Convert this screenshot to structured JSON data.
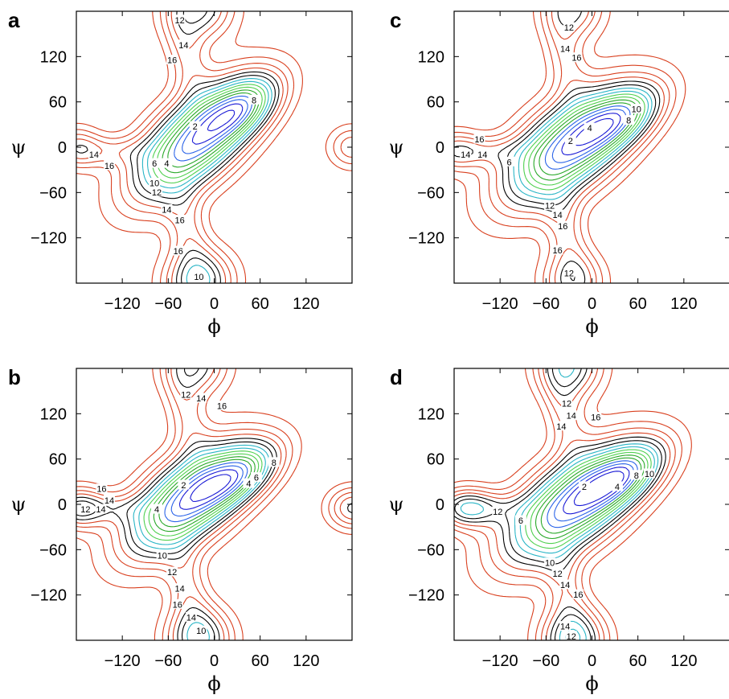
{
  "chart_data": [
    {
      "panel": "a",
      "type": "contour",
      "xlabel": "ϕ",
      "ylabel": "ψ",
      "xlim": [
        -180,
        180
      ],
      "ylim": [
        -180,
        180
      ],
      "xticks": [
        -120,
        -60,
        0,
        60,
        120
      ],
      "yticks": [
        -120,
        -60,
        0,
        60,
        120
      ],
      "xtick_labels": [
        "−120",
        "−60",
        "0",
        "60",
        "120"
      ],
      "ytick_labels": [
        "−120",
        "−60",
        "0",
        "60",
        "120"
      ],
      "contour_levels": [
        1,
        2,
        3,
        4,
        5,
        6,
        7,
        8,
        9,
        10,
        11,
        12,
        13,
        14,
        15,
        16
      ],
      "contour_labels": [
        {
          "text": "2",
          "phi": -25,
          "psi": 27
        },
        {
          "text": "4",
          "phi": -62,
          "psi": -22
        },
        {
          "text": "6",
          "phi": -78,
          "psi": -22
        },
        {
          "text": "8",
          "phi": 52,
          "psi": 62
        },
        {
          "text": "10",
          "phi": -78,
          "psi": -48
        },
        {
          "text": "12",
          "phi": -75,
          "psi": -60
        },
        {
          "text": "14",
          "phi": -62,
          "psi": -83
        },
        {
          "text": "16",
          "phi": -45,
          "psi": -97
        },
        {
          "text": "14",
          "phi": -157,
          "psi": -10
        },
        {
          "text": "16",
          "phi": -137,
          "psi": -25
        },
        {
          "text": "12",
          "phi": -45,
          "psi": 168
        },
        {
          "text": "14",
          "phi": -40,
          "psi": 135
        },
        {
          "text": "16",
          "phi": -55,
          "psi": 115
        },
        {
          "text": "16",
          "phi": -47,
          "psi": -138
        },
        {
          "text": "10",
          "phi": -20,
          "psi": -172
        }
      ]
    },
    {
      "panel": "b",
      "type": "contour",
      "xlabel": "ϕ",
      "ylabel": "ψ",
      "xlim": [
        -180,
        180
      ],
      "ylim": [
        -180,
        180
      ],
      "xticks": [
        -120,
        -60,
        0,
        60,
        120
      ],
      "yticks": [
        -120,
        -60,
        0,
        60,
        120
      ],
      "xtick_labels": [
        "−120",
        "−60",
        "0",
        "60",
        "120"
      ],
      "ytick_labels": [
        "−120",
        "−60",
        "0",
        "60",
        "120"
      ],
      "contour_levels": [
        1,
        2,
        3,
        4,
        5,
        6,
        7,
        8,
        9,
        10,
        11,
        12,
        13,
        14,
        15,
        16
      ],
      "contour_labels": [
        {
          "text": "2",
          "phi": -40,
          "psi": 25
        },
        {
          "text": "4",
          "phi": -75,
          "psi": -7
        },
        {
          "text": "4",
          "phi": 45,
          "psi": 27
        },
        {
          "text": "6",
          "phi": 55,
          "psi": 35
        },
        {
          "text": "8",
          "phi": 78,
          "psi": 55
        },
        {
          "text": "10",
          "phi": -68,
          "psi": -68
        },
        {
          "text": "12",
          "phi": -55,
          "psi": -90
        },
        {
          "text": "14",
          "phi": -45,
          "psi": -112
        },
        {
          "text": "16",
          "phi": -48,
          "psi": -133
        },
        {
          "text": "16",
          "phi": -147,
          "psi": 20
        },
        {
          "text": "14",
          "phi": -137,
          "psi": 5
        },
        {
          "text": "14",
          "phi": -148,
          "psi": -7
        },
        {
          "text": "12",
          "phi": -168,
          "psi": -7
        },
        {
          "text": "12",
          "phi": -37,
          "psi": 145
        },
        {
          "text": "14",
          "phi": -17,
          "psi": 140
        },
        {
          "text": "16",
          "phi": 10,
          "psi": 130
        },
        {
          "text": "14",
          "phi": -30,
          "psi": -150
        },
        {
          "text": "10",
          "phi": -17,
          "psi": -168
        }
      ]
    },
    {
      "panel": "c",
      "type": "contour",
      "xlabel": "ϕ",
      "ylabel": "ψ",
      "xlim": [
        -180,
        180
      ],
      "ylim": [
        -180,
        180
      ],
      "xticks": [
        -120,
        -60,
        0,
        60,
        120
      ],
      "yticks": [
        -120,
        -60,
        0,
        60,
        120
      ],
      "xtick_labels": [
        "−120",
        "−60",
        "0",
        "60",
        "120"
      ],
      "ytick_labels": [
        "−120",
        "−60",
        "0",
        "60",
        "120"
      ],
      "contour_levels": [
        1,
        2,
        3,
        4,
        5,
        6,
        7,
        8,
        9,
        10,
        11,
        12,
        13,
        14,
        15,
        16
      ],
      "contour_labels": [
        {
          "text": "2",
          "phi": -28,
          "psi": 8
        },
        {
          "text": "4",
          "phi": -3,
          "psi": 25
        },
        {
          "text": "6",
          "phi": -108,
          "psi": -20
        },
        {
          "text": "8",
          "phi": 48,
          "psi": 35
        },
        {
          "text": "10",
          "phi": 58,
          "psi": 50
        },
        {
          "text": "12",
          "phi": -55,
          "psi": -78
        },
        {
          "text": "14",
          "phi": -45,
          "psi": -90
        },
        {
          "text": "16",
          "phi": -38,
          "psi": -105
        },
        {
          "text": "16",
          "phi": -147,
          "psi": 10
        },
        {
          "text": "14",
          "phi": -165,
          "psi": -10
        },
        {
          "text": "14",
          "phi": -143,
          "psi": -10
        },
        {
          "text": "12",
          "phi": -30,
          "psi": 158
        },
        {
          "text": "14",
          "phi": -35,
          "psi": 130
        },
        {
          "text": "16",
          "phi": -20,
          "psi": 118
        },
        {
          "text": "16",
          "phi": -45,
          "psi": -137
        },
        {
          "text": "12",
          "phi": -30,
          "psi": -167
        }
      ]
    },
    {
      "panel": "d",
      "type": "contour",
      "xlabel": "ϕ",
      "ylabel": "ψ",
      "xlim": [
        -180,
        180
      ],
      "ylim": [
        -180,
        180
      ],
      "xticks": [
        -120,
        -60,
        0,
        60,
        120
      ],
      "yticks": [
        -120,
        -60,
        0,
        60,
        120
      ],
      "xtick_labels": [
        "−120",
        "−60",
        "0",
        "60",
        "120"
      ],
      "ytick_labels": [
        "−120",
        "−60",
        "0",
        "60",
        "120"
      ],
      "contour_levels": [
        1,
        2,
        3,
        4,
        5,
        6,
        7,
        8,
        9,
        10,
        11,
        12,
        13,
        14,
        15,
        16
      ],
      "contour_labels": [
        {
          "text": "2",
          "phi": -10,
          "psi": 23
        },
        {
          "text": "4",
          "phi": 33,
          "psi": 23
        },
        {
          "text": "6",
          "phi": -93,
          "psi": -22
        },
        {
          "text": "8",
          "phi": 58,
          "psi": 38
        },
        {
          "text": "10",
          "phi": 75,
          "psi": 40
        },
        {
          "text": "10",
          "phi": -55,
          "psi": -78
        },
        {
          "text": "12",
          "phi": -45,
          "psi": -92
        },
        {
          "text": "14",
          "phi": -35,
          "psi": -107
        },
        {
          "text": "16",
          "phi": -18,
          "psi": -120
        },
        {
          "text": "12",
          "phi": -123,
          "psi": -10
        },
        {
          "text": "12",
          "phi": -33,
          "psi": 133
        },
        {
          "text": "14",
          "phi": -27,
          "psi": 117
        },
        {
          "text": "14",
          "phi": -40,
          "psi": 103
        },
        {
          "text": "16",
          "phi": 5,
          "psi": 115
        },
        {
          "text": "14",
          "phi": -35,
          "psi": -162
        },
        {
          "text": "12",
          "phi": -27,
          "psi": -175
        }
      ]
    }
  ],
  "colors": {
    "level_1_2": "#1a1ad6",
    "level_3_4": "#2a63e8",
    "level_5_6": "#28a828",
    "level_7_8": "#4fd04f",
    "level_9_10": "#29b5c6",
    "level_11_12": "#000000",
    "level_13_16": "#d9401f",
    "frame": "#000000"
  }
}
